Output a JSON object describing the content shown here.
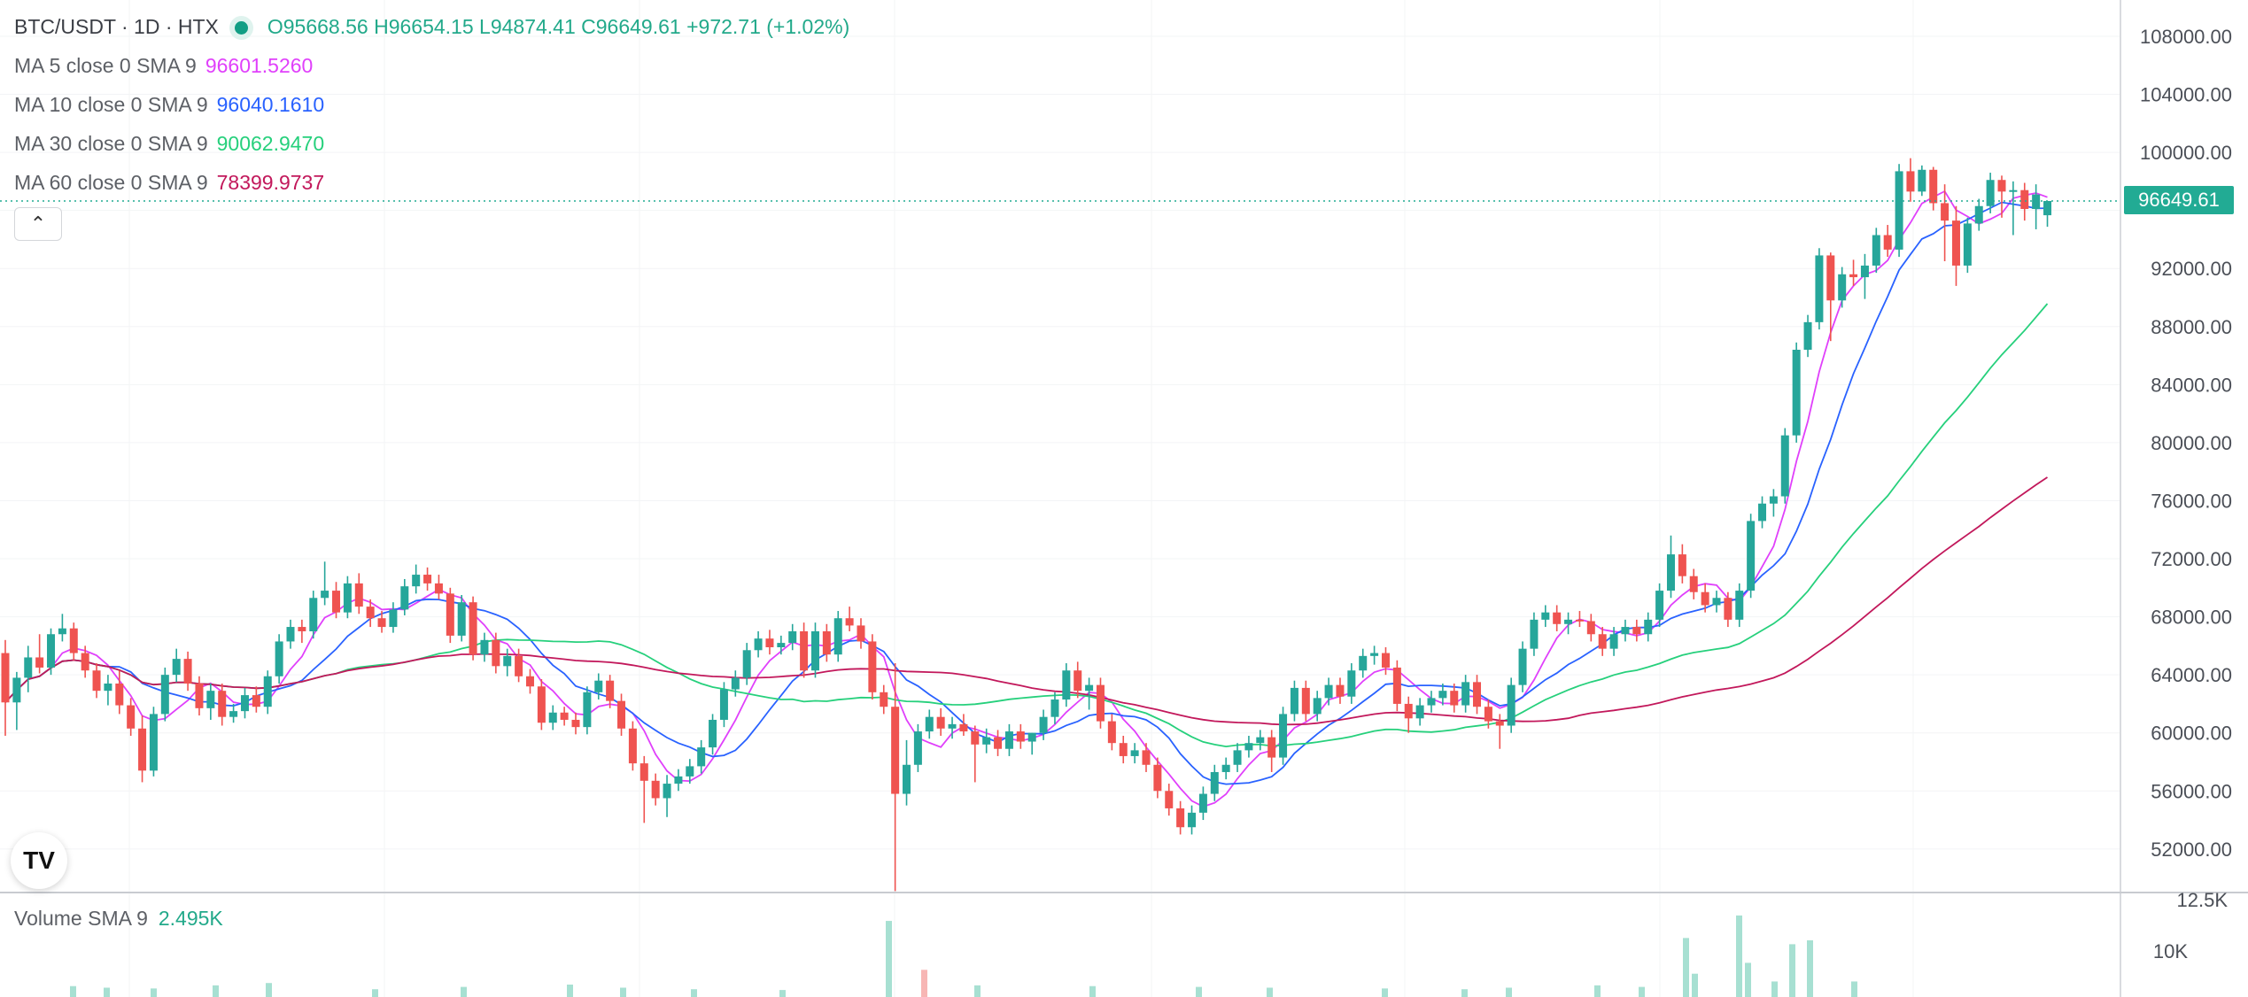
{
  "header": {
    "symbol": "BTC/USDT · 1D · HTX",
    "open": "O95668.56",
    "high": "H96654.15",
    "low": "L94874.41",
    "close": "C96649.61",
    "change": "+972.71 (+1.02%)"
  },
  "indicators": [
    {
      "label": "MA 5 close 0 SMA 9",
      "value": "96601.5260",
      "color": "#e040fb"
    },
    {
      "label": "MA 10 close 0 SMA 9",
      "value": "96040.1610",
      "color": "#2962ff"
    },
    {
      "label": "MA 30 close 0 SMA 9",
      "value": "90062.9470",
      "color": "#26d07c"
    },
    {
      "label": "MA 60 close 0 SMA 9",
      "value": "78399.9737",
      "color": "#c2185b"
    }
  ],
  "volume": {
    "label": "Volume SMA 9",
    "value": "2.495K"
  },
  "last_price_label": "96649.61",
  "logo_text": "TV",
  "collapse_icon": "chevron-up-icon",
  "colors": {
    "up": "#26a69a",
    "down": "#ef5350",
    "accent": "#22ab94"
  },
  "chart_data": {
    "type": "candlestick",
    "title": "BTC/USDT · 1D · HTX",
    "y_axis": {
      "ticks": [
        108000,
        104000,
        100000,
        96000,
        92000,
        88000,
        84000,
        80000,
        76000,
        72000,
        68000,
        64000,
        60000,
        56000,
        52000
      ],
      "tick_labels": [
        "108000.00",
        "104000.00",
        "100000.00",
        "",
        "92000.00",
        "88000.00",
        "84000.00",
        "80000.00",
        "76000.00",
        "72000.00",
        "68000.00",
        "64000.00",
        "60000.00",
        "56000.00",
        "52000.00"
      ],
      "range": [
        49000,
        110500
      ]
    },
    "volume_axis": {
      "tick_labels": [
        "12.5K",
        "10K"
      ],
      "range": [
        0,
        13000
      ]
    },
    "last_price": 96649.61,
    "candles": [
      [
        65500,
        66400,
        59800,
        62100
      ],
      [
        62100,
        64200,
        60200,
        63800
      ],
      [
        63800,
        66000,
        62800,
        65200
      ],
      [
        65200,
        66800,
        64100,
        64500
      ],
      [
        64500,
        67200,
        64000,
        66800
      ],
      [
        66800,
        68200,
        66300,
        67200
      ],
      [
        67200,
        67600,
        65000,
        65500
      ],
      [
        65500,
        66000,
        63800,
        64300
      ],
      [
        64300,
        64800,
        62400,
        62900
      ],
      [
        62900,
        64000,
        61900,
        63400
      ],
      [
        63400,
        64300,
        61300,
        61900
      ],
      [
        61900,
        62400,
        59800,
        60300
      ],
      [
        60300,
        61200,
        56600,
        57400
      ],
      [
        57400,
        61800,
        57000,
        61300
      ],
      [
        61300,
        64500,
        60800,
        64000
      ],
      [
        64000,
        65800,
        63500,
        65100
      ],
      [
        65100,
        65600,
        62900,
        63400
      ],
      [
        63400,
        63900,
        61200,
        61700
      ],
      [
        61700,
        63400,
        60900,
        62900
      ],
      [
        62900,
        63400,
        60500,
        61100
      ],
      [
        61100,
        62000,
        60700,
        61500
      ],
      [
        61500,
        63100,
        61000,
        62600
      ],
      [
        62600,
        63200,
        61400,
        61800
      ],
      [
        61800,
        64300,
        61300,
        63900
      ],
      [
        63900,
        66800,
        63400,
        66300
      ],
      [
        66300,
        67800,
        65800,
        67300
      ],
      [
        67300,
        67800,
        66200,
        67000
      ],
      [
        67000,
        69800,
        66500,
        69300
      ],
      [
        69300,
        71800,
        68800,
        69800
      ],
      [
        69800,
        70400,
        67900,
        68300
      ],
      [
        68300,
        70800,
        67900,
        70300
      ],
      [
        70300,
        71000,
        68200,
        68700
      ],
      [
        68700,
        69200,
        67300,
        67900
      ],
      [
        67900,
        68400,
        66900,
        67300
      ],
      [
        67300,
        69000,
        66900,
        68500
      ],
      [
        68500,
        70600,
        68100,
        70100
      ],
      [
        70100,
        71600,
        69600,
        70900
      ],
      [
        70900,
        71400,
        69800,
        70300
      ],
      [
        70300,
        70900,
        69200,
        69600
      ],
      [
        69600,
        70000,
        66200,
        66700
      ],
      [
        66700,
        69500,
        66300,
        69000
      ],
      [
        69000,
        69400,
        65000,
        65400
      ],
      [
        65400,
        66900,
        64900,
        66400
      ],
      [
        66400,
        66900,
        64100,
        64600
      ],
      [
        64600,
        65800,
        63900,
        65300
      ],
      [
        65300,
        65800,
        63500,
        63900
      ],
      [
        63900,
        64400,
        62700,
        63200
      ],
      [
        63200,
        63700,
        60200,
        60700
      ],
      [
        60700,
        61900,
        60200,
        61400
      ],
      [
        61400,
        61800,
        60500,
        60900
      ],
      [
        60900,
        61400,
        59900,
        60400
      ],
      [
        60400,
        63200,
        59900,
        62800
      ],
      [
        62800,
        64100,
        62300,
        63600
      ],
      [
        63600,
        64000,
        61700,
        62200
      ],
      [
        62200,
        62700,
        59800,
        60300
      ],
      [
        60300,
        60800,
        57400,
        57900
      ],
      [
        57900,
        58400,
        53800,
        56700
      ],
      [
        56700,
        57200,
        55000,
        55500
      ],
      [
        55500,
        57100,
        54200,
        56500
      ],
      [
        56500,
        57500,
        56000,
        57000
      ],
      [
        57000,
        58200,
        56500,
        57700
      ],
      [
        57700,
        59500,
        57200,
        59000
      ],
      [
        59000,
        61300,
        58500,
        60900
      ],
      [
        60900,
        63500,
        60400,
        63000
      ],
      [
        63000,
        64300,
        62500,
        63800
      ],
      [
        63800,
        66200,
        63300,
        65700
      ],
      [
        65700,
        67000,
        65200,
        66500
      ],
      [
        66500,
        67100,
        65400,
        65900
      ],
      [
        65900,
        66700,
        65400,
        66200
      ],
      [
        66200,
        67500,
        65700,
        67000
      ],
      [
        67000,
        67600,
        63800,
        64300
      ],
      [
        64300,
        67600,
        63800,
        67000
      ],
      [
        67000,
        67500,
        64900,
        65400
      ],
      [
        65400,
        68400,
        64900,
        67900
      ],
      [
        67900,
        68700,
        67000,
        67400
      ],
      [
        67400,
        67900,
        65800,
        66300
      ],
      [
        66300,
        66800,
        62300,
        62800
      ],
      [
        62800,
        63300,
        61300,
        61800
      ],
      [
        61800,
        64800,
        49100,
        55800
      ],
      [
        55800,
        59500,
        55000,
        57800
      ],
      [
        57800,
        60600,
        57300,
        60100
      ],
      [
        60100,
        61600,
        59600,
        61100
      ],
      [
        61100,
        61700,
        59800,
        60300
      ],
      [
        60300,
        61100,
        59600,
        60600
      ],
      [
        60600,
        61300,
        59800,
        60100
      ],
      [
        60100,
        60500,
        56600,
        59200
      ],
      [
        59200,
        60300,
        58600,
        59700
      ],
      [
        59700,
        60200,
        58400,
        58900
      ],
      [
        58900,
        60600,
        58400,
        60100
      ],
      [
        60100,
        60600,
        58900,
        59400
      ],
      [
        59400,
        60000,
        58500,
        60000
      ],
      [
        60000,
        61600,
        59500,
        61100
      ],
      [
        61100,
        62800,
        60600,
        62300
      ],
      [
        62300,
        64800,
        61800,
        64300
      ],
      [
        64300,
        64900,
        62400,
        62900
      ],
      [
        62900,
        63800,
        61600,
        63300
      ],
      [
        63300,
        63800,
        60300,
        60800
      ],
      [
        60800,
        61300,
        58800,
        59300
      ],
      [
        59300,
        59800,
        57900,
        58400
      ],
      [
        58400,
        59300,
        57900,
        58800
      ],
      [
        58800,
        59300,
        57300,
        57800
      ],
      [
        57800,
        58300,
        55500,
        56000
      ],
      [
        56000,
        56500,
        54300,
        54800
      ],
      [
        54800,
        55300,
        53000,
        53500
      ],
      [
        53500,
        55000,
        53000,
        54500
      ],
      [
        54500,
        56300,
        54000,
        55800
      ],
      [
        55800,
        57800,
        55300,
        57300
      ],
      [
        57300,
        58300,
        56800,
        57800
      ],
      [
        57800,
        59300,
        57300,
        58800
      ],
      [
        58800,
        59800,
        58300,
        59300
      ],
      [
        59300,
        60200,
        58800,
        59700
      ],
      [
        59700,
        60200,
        57300,
        58300
      ],
      [
        58300,
        61800,
        57800,
        61300
      ],
      [
        61300,
        63600,
        60800,
        63100
      ],
      [
        63100,
        63600,
        60800,
        61300
      ],
      [
        61300,
        62900,
        60800,
        62400
      ],
      [
        62400,
        63800,
        61900,
        63300
      ],
      [
        63300,
        63800,
        62000,
        62500
      ],
      [
        62500,
        64800,
        62000,
        64300
      ],
      [
        64300,
        65800,
        63800,
        65300
      ],
      [
        65300,
        66000,
        64700,
        65500
      ],
      [
        65500,
        65900,
        64000,
        64500
      ],
      [
        64500,
        65000,
        61500,
        62000
      ],
      [
        62000,
        62500,
        60000,
        61000
      ],
      [
        61000,
        62400,
        60500,
        61900
      ],
      [
        61900,
        62900,
        61400,
        62400
      ],
      [
        62400,
        63400,
        61900,
        62900
      ],
      [
        62900,
        63400,
        61400,
        61900
      ],
      [
        61900,
        64000,
        61400,
        63500
      ],
      [
        63500,
        64000,
        61300,
        61800
      ],
      [
        61800,
        62300,
        60300,
        60800
      ],
      [
        60800,
        61300,
        58900,
        60500
      ],
      [
        60500,
        63800,
        60000,
        63300
      ],
      [
        63300,
        66300,
        62800,
        65800
      ],
      [
        65800,
        68300,
        65300,
        67800
      ],
      [
        67800,
        68800,
        67300,
        68300
      ],
      [
        68300,
        68800,
        67000,
        67500
      ],
      [
        67500,
        68300,
        66800,
        67800
      ],
      [
        67800,
        68400,
        67300,
        67700
      ],
      [
        67700,
        68200,
        66300,
        66800
      ],
      [
        66800,
        67300,
        65300,
        65800
      ],
      [
        65800,
        67300,
        65300,
        66800
      ],
      [
        66800,
        67800,
        66300,
        67300
      ],
      [
        67300,
        67800,
        66300,
        66800
      ],
      [
        66800,
        68300,
        66300,
        67800
      ],
      [
        67800,
        70300,
        67300,
        69800
      ],
      [
        69800,
        73600,
        69300,
        72300
      ],
      [
        72300,
        73000,
        70300,
        70800
      ],
      [
        70800,
        71300,
        69200,
        69700
      ],
      [
        69700,
        70300,
        68300,
        68800
      ],
      [
        68800,
        69800,
        68300,
        69300
      ],
      [
        69300,
        69700,
        67300,
        67800
      ],
      [
        67800,
        70300,
        67300,
        69800
      ],
      [
        69800,
        75100,
        69300,
        74600
      ],
      [
        74600,
        76300,
        74100,
        75800
      ],
      [
        75800,
        76800,
        74900,
        76300
      ],
      [
        76300,
        81000,
        75800,
        80500
      ],
      [
        80500,
        86900,
        80000,
        86400
      ],
      [
        86400,
        88800,
        85900,
        88300
      ],
      [
        88300,
        93400,
        87800,
        92900
      ],
      [
        92900,
        93100,
        87000,
        89800
      ],
      [
        89800,
        92100,
        89300,
        91600
      ],
      [
        91600,
        92600,
        90800,
        91400
      ],
      [
        91400,
        93000,
        89900,
        92200
      ],
      [
        92200,
        94800,
        91700,
        94300
      ],
      [
        94300,
        95000,
        92800,
        93300
      ],
      [
        93300,
        99200,
        92800,
        98700
      ],
      [
        98700,
        99600,
        96600,
        97300
      ],
      [
        97300,
        99100,
        97000,
        98800
      ],
      [
        98800,
        99000,
        96000,
        96500
      ],
      [
        96500,
        97800,
        92500,
        95300
      ],
      [
        95300,
        96300,
        90800,
        92200
      ],
      [
        92200,
        95500,
        91700,
        95100
      ],
      [
        95100,
        96800,
        94600,
        96300
      ],
      [
        96300,
        98600,
        95800,
        98100
      ],
      [
        98100,
        98400,
        95500,
        97300
      ],
      [
        97300,
        98000,
        94300,
        97400
      ],
      [
        97400,
        97900,
        95300,
        96100
      ],
      [
        96100,
        97800,
        94700,
        97100
      ],
      [
        95669,
        96654,
        94874,
        96650
      ]
    ],
    "ma_series": [
      {
        "name": "MA 5",
        "period": 5,
        "last": 96601.526
      },
      {
        "name": "MA 10",
        "period": 10,
        "last": 96040.161
      },
      {
        "name": "MA 30",
        "period": 30,
        "last": 90062.947
      },
      {
        "name": "MA 60",
        "period": 60,
        "last": 78399.9737
      }
    ],
    "volumes": [
      [
        79,
        1400
      ],
      [
        117,
        1200
      ],
      [
        170,
        1100
      ],
      [
        240,
        1500
      ],
      [
        300,
        1800
      ],
      [
        420,
        1000
      ],
      [
        520,
        1300
      ],
      [
        640,
        1600
      ],
      [
        700,
        1200
      ],
      [
        780,
        1000
      ],
      [
        880,
        900
      ],
      [
        1000,
        9800
      ],
      [
        1040,
        3500
      ],
      [
        1100,
        1500
      ],
      [
        1230,
        1400
      ],
      [
        1350,
        1300
      ],
      [
        1430,
        1200
      ],
      [
        1560,
        1100
      ],
      [
        1650,
        1000
      ],
      [
        1700,
        1200
      ],
      [
        1800,
        1500
      ],
      [
        1850,
        1300
      ],
      [
        1900,
        7600
      ],
      [
        1910,
        3000
      ],
      [
        1960,
        10500
      ],
      [
        1970,
        4400
      ],
      [
        2000,
        2000
      ],
      [
        2020,
        6800
      ],
      [
        2040,
        7300
      ],
      [
        2090,
        2000
      ]
    ],
    "grid": true
  }
}
